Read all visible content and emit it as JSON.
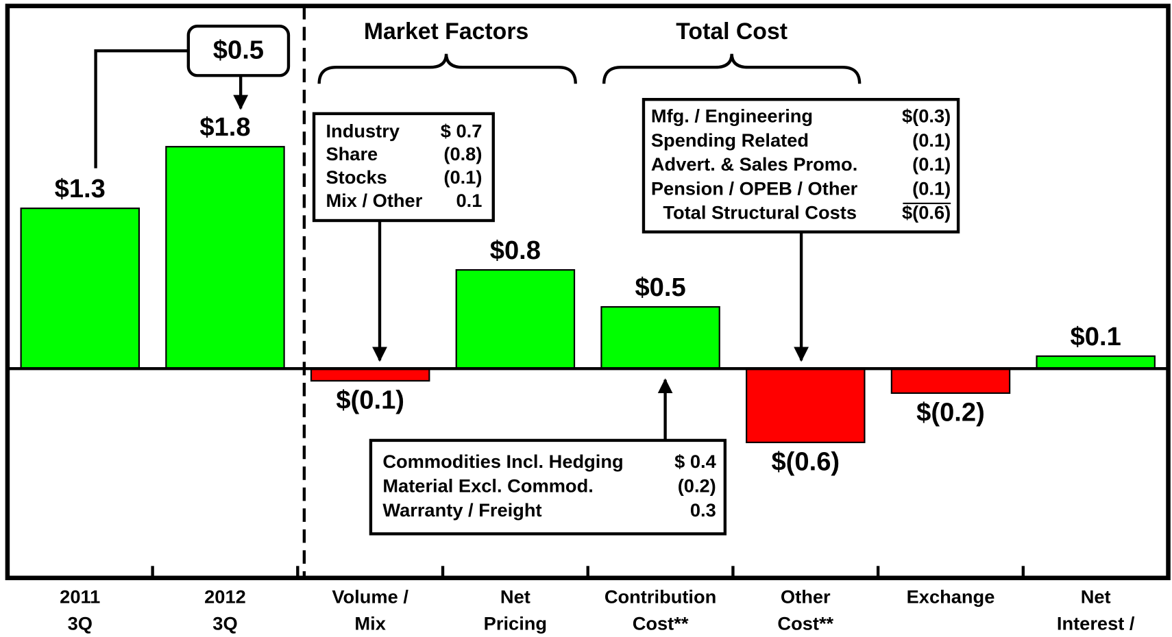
{
  "chart_data": {
    "type": "bar",
    "categories": [
      [
        "2011",
        "3Q"
      ],
      [
        "2012",
        "3Q"
      ],
      [
        "Volume /",
        "Mix"
      ],
      [
        "Net",
        "Pricing"
      ],
      [
        "Contribution",
        "Cost**"
      ],
      [
        "Other",
        "Cost**"
      ],
      [
        "Exchange"
      ],
      [
        "Net",
        "Interest /"
      ]
    ],
    "values": [
      1.3,
      1.8,
      -0.1,
      0.8,
      0.5,
      -0.6,
      -0.2,
      0.1
    ],
    "value_labels": [
      "$1.3",
      "$1.8",
      "$(0.1)",
      "$0.8",
      "$0.5",
      "$(0.6)",
      "$(0.2)",
      "$0.1"
    ],
    "colors": [
      "#00ff00",
      "#00ff00",
      "#ff0000",
      "#00ff00",
      "#00ff00",
      "#ff0000",
      "#ff0000",
      "#00ff00"
    ],
    "ylim": [
      -1.7,
      2.93
    ],
    "change_callout": "$0.5",
    "group_labels": [
      "Market Factors",
      "Total Cost"
    ],
    "breakdowns": [
      {
        "rows": [
          [
            "Industry",
            "$ 0.7"
          ],
          [
            "Share",
            "(0.8)"
          ],
          [
            "Stocks",
            "(0.1)"
          ],
          [
            "Mix / Other",
            "0.1"
          ]
        ]
      },
      {
        "rows": [
          [
            "Mfg. / Engineering",
            "$(0.3)"
          ],
          [
            "Spending Related",
            "(0.1)"
          ],
          [
            "Advert. & Sales Promo.",
            "(0.1)"
          ],
          [
            "Pension / OPEB / Other",
            "(0.1)"
          ],
          [
            "Total Structural Costs",
            "$(0.6)"
          ]
        ]
      },
      {
        "rows": [
          [
            "Commodities Incl. Hedging",
            "$ 0.4"
          ],
          [
            "Material Excl. Commod.",
            "(0.2)"
          ],
          [
            "Warranty / Freight",
            "0.3"
          ]
        ]
      }
    ]
  }
}
